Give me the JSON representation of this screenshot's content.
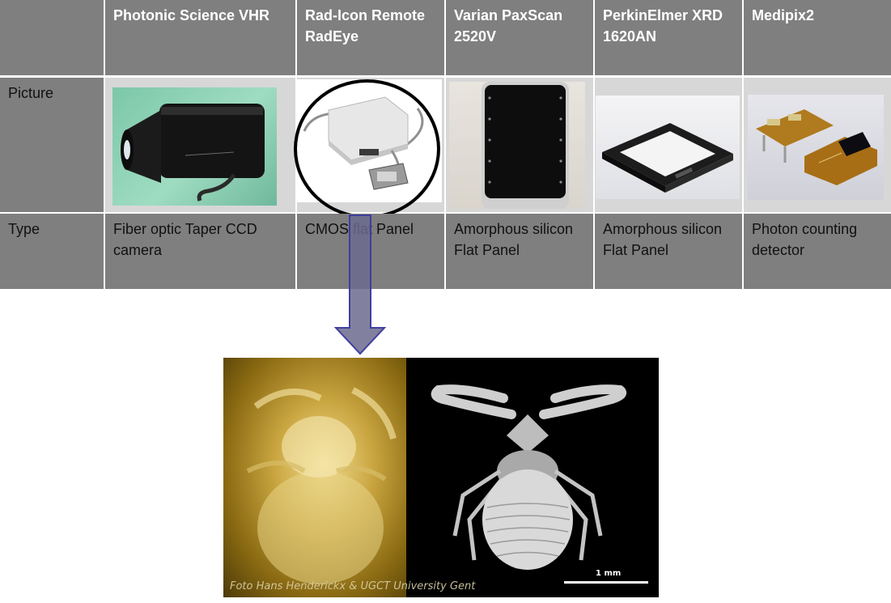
{
  "table": {
    "headers": [
      "",
      "Photonic Science VHR",
      "Rad-Icon Remote RadEye",
      "Varian PaxScan 2520V",
      "PerkinElmer XRD 1620AN",
      "Medipix2"
    ],
    "row_labels": {
      "picture": "Picture",
      "type": "Type"
    },
    "types": [
      "Fiber optic Taper CCD camera",
      "CMOS flat Panel",
      "Amorphous silicon Flat Panel",
      "Amorphous silicon Flat Panel",
      "Photon counting detector"
    ]
  },
  "colors": {
    "header_bg": "#7f7f7f",
    "label_bg": "#7f7f7f",
    "picture_bg": "#d7d7d7",
    "arrow_fill": "#6b6b8e",
    "arrow_stroke": "#3f3f9f"
  },
  "scan_image": {
    "credit": "Foto Hans Henderickx & UGCT University Gent",
    "scale_label": "1 mm"
  }
}
